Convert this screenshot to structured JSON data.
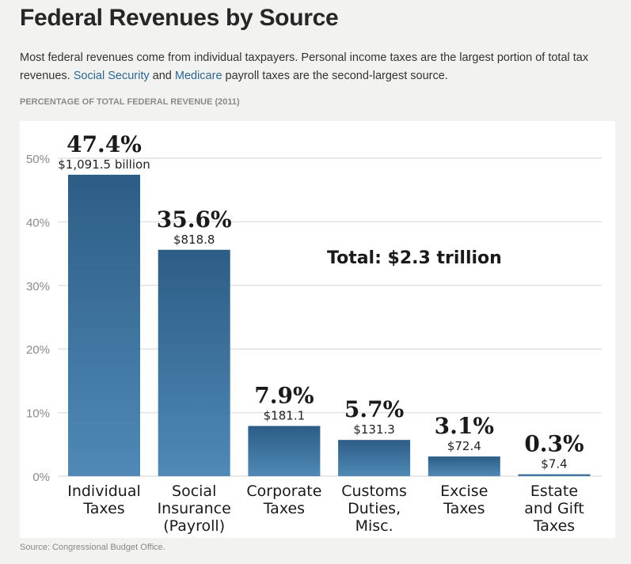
{
  "header": {
    "title": "Federal Revenues by Source",
    "intro_part1": "Most federal revenues come from individual taxpayers. Personal income taxes are the largest portion of total tax revenues. ",
    "link1": "Social Security",
    "intro_part2": " and ",
    "link2": "Medicare",
    "intro_part3": " payroll taxes are the second-largest source."
  },
  "chart_data": {
    "type": "bar",
    "title": "PERCENTAGE OF TOTAL FEDERAL REVENUE (2011)",
    "categories": [
      [
        "Individual",
        "Taxes"
      ],
      [
        "Social",
        "Insurance",
        "(Payroll)"
      ],
      [
        "Corporate",
        "Taxes"
      ],
      [
        "Customs",
        "Duties,",
        "Misc."
      ],
      [
        "Excise",
        "Taxes"
      ],
      [
        "Estate",
        "and Gift",
        "Taxes"
      ]
    ],
    "values": [
      47.4,
      35.6,
      7.9,
      5.7,
      3.1,
      0.3
    ],
    "value_labels": [
      "47.4%",
      "35.6%",
      "7.9%",
      "5.7%",
      "3.1%",
      "0.3%"
    ],
    "amount_labels": [
      "$1,091.5 billion",
      "$818.8",
      "$181.1",
      "$131.3",
      "$72.4",
      "$7.4"
    ],
    "yticks": [
      0,
      10,
      20,
      30,
      40,
      50
    ],
    "ytick_labels": [
      "0%",
      "10%",
      "20%",
      "30%",
      "40%",
      "50%"
    ],
    "ylim": [
      0,
      50
    ],
    "annotation": "Total: $2.3 trillion",
    "grid": true,
    "bar_color_top": "#2c5d86",
    "bar_color_bottom": "#5089b6"
  },
  "footer": {
    "source": "Source: Congressional Budget Office."
  }
}
